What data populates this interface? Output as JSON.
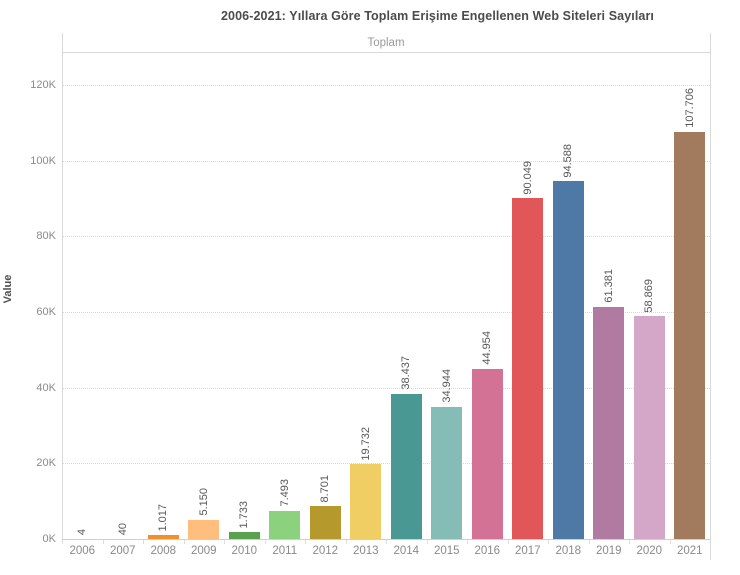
{
  "title": "2006-2021: Yıllara Göre Toplam Erişime Engellenen Web Siteleri Sayıları",
  "pane_header": "Toplam",
  "y_axis": {
    "label": "Value",
    "tick_labels": [
      "0K",
      "20K",
      "40K",
      "60K",
      "80K",
      "100K",
      "120K"
    ],
    "tick_values": [
      0,
      20000,
      40000,
      60000,
      80000,
      100000,
      120000
    ]
  },
  "chart_data": {
    "type": "bar",
    "title": "2006-2021: Yıllara Göre Toplam Erişime Engellenen Web Siteleri Sayıları",
    "subtitle": "Toplam",
    "xlabel": "",
    "ylabel": "Value",
    "ylim": [
      0,
      130000
    ],
    "grid": "horizontal-dotted",
    "legend": "none",
    "categories": [
      "2006",
      "2007",
      "2008",
      "2009",
      "2010",
      "2011",
      "2012",
      "2013",
      "2014",
      "2015",
      "2016",
      "2017",
      "2018",
      "2019",
      "2020",
      "2021"
    ],
    "values": [
      4,
      40,
      1017,
      5150,
      1733,
      7493,
      8701,
      19732,
      38437,
      34944,
      44954,
      90049,
      94588,
      61381,
      58869,
      107706
    ],
    "value_labels": [
      "4",
      "40",
      "1.017",
      "5.150",
      "1.733",
      "7.493",
      "8.701",
      "19.732",
      "38.437",
      "34.944",
      "44.954",
      "90.049",
      "94.588",
      "61.381",
      "58.869",
      "107.706"
    ],
    "bar_colors": [
      "#4E79A7",
      "#A0CBE8",
      "#F28E2B",
      "#FFBE7D",
      "#59A14F",
      "#8CD17D",
      "#B6992D",
      "#F1CE63",
      "#499894",
      "#86BCB6",
      "#D37295",
      "#E15759",
      "#4E79A7",
      "#B07AA1",
      "#D4A6C8",
      "#A27A5E"
    ]
  },
  "colors": {
    "title_text": "#4b4b4b",
    "axis_text": "#8a8a8a",
    "value_label_text": "#575757",
    "gridline": "#d8d8d8",
    "pane_border": "#d9d9d9"
  }
}
